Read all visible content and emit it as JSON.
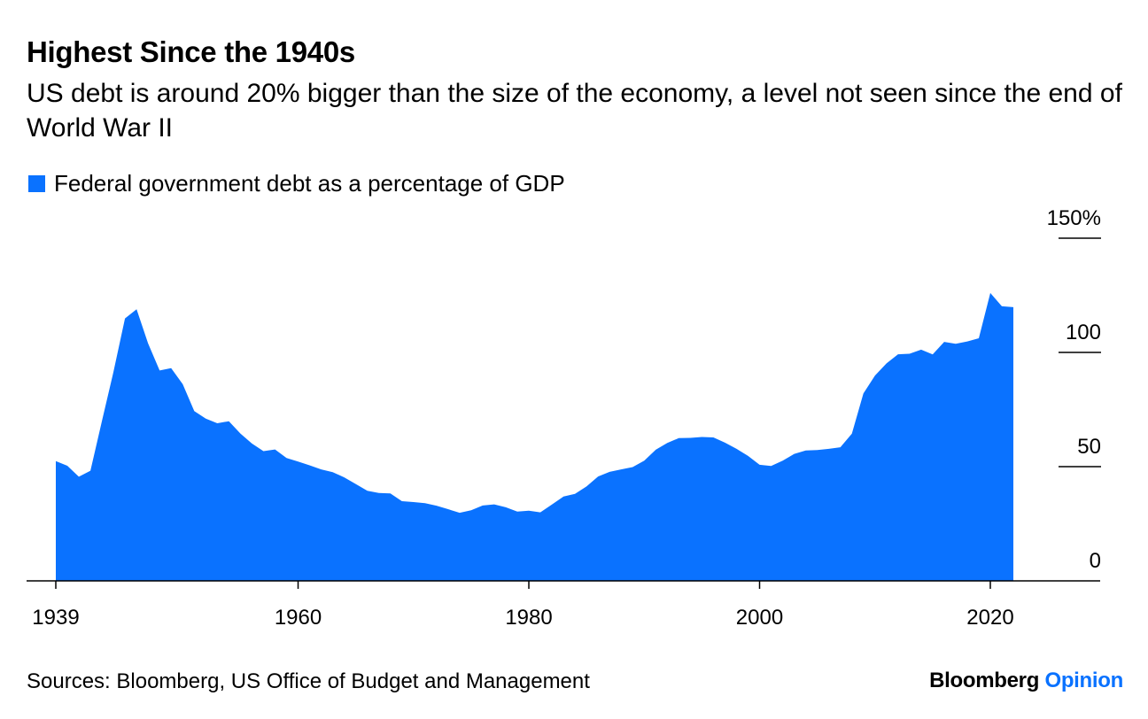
{
  "header": {
    "title": "Highest Since the 1940s",
    "subtitle": "US debt is around 20% bigger than the size of the economy, a level not seen since the end of World War II"
  },
  "legend": {
    "label": "Federal government debt as a percentage of GDP"
  },
  "footer": {
    "source": "Sources: Bloomberg, US Office of Budget and Management",
    "brand_main": "Bloomberg",
    "brand_accent": "Opinion"
  },
  "colors": {
    "series": "#0a72ff",
    "axis": "#000000"
  },
  "chart_data": {
    "type": "area",
    "title": "Highest Since the 1940s",
    "subtitle": "US debt is around 20% bigger than the size of the economy, a level not seen since the end of World War II",
    "xlabel": "",
    "ylabel": "",
    "xlim": [
      1939,
      2027
    ],
    "ylim": [
      0,
      150
    ],
    "grid": false,
    "legend_position": "top-left",
    "y_axis_side": "right",
    "x_ticks": [
      1939,
      1960,
      1980,
      2000,
      2020
    ],
    "x_tick_labels": [
      "1939",
      "1960",
      "1980",
      "2000",
      "2020"
    ],
    "y_ticks": [
      0,
      50,
      100,
      150
    ],
    "y_tick_labels": [
      "0",
      "50",
      "100",
      "150%"
    ],
    "series": [
      {
        "name": "Federal government debt as a percentage of GDP",
        "x": [
          1939,
          1940,
          1941,
          1942,
          1943,
          1944,
          1945,
          1946,
          1947,
          1948,
          1949,
          1950,
          1951,
          1952,
          1953,
          1954,
          1955,
          1956,
          1957,
          1958,
          1959,
          1960,
          1961,
          1962,
          1963,
          1964,
          1965,
          1966,
          1967,
          1968,
          1969,
          1970,
          1971,
          1972,
          1973,
          1974,
          1975,
          1976,
          1977,
          1978,
          1979,
          1980,
          1981,
          1982,
          1983,
          1984,
          1985,
          1986,
          1987,
          1988,
          1989,
          1990,
          1991,
          1992,
          1993,
          1994,
          1995,
          1996,
          1997,
          1998,
          1999,
          2000,
          2001,
          2002,
          2003,
          2004,
          2005,
          2006,
          2007,
          2008,
          2009,
          2010,
          2011,
          2012,
          2013,
          2014,
          2015,
          2016,
          2017,
          2018,
          2019,
          2020,
          2021,
          2022
        ],
        "values": [
          52.4,
          50.4,
          45.6,
          48.2,
          70.0,
          91.5,
          114.9,
          118.9,
          103.9,
          92.1,
          93.1,
          86.1,
          74.3,
          71.0,
          69.0,
          69.9,
          64.5,
          60.1,
          56.8,
          57.5,
          53.8,
          52.2,
          50.6,
          48.8,
          47.6,
          45.3,
          42.4,
          39.4,
          38.5,
          38.3,
          34.9,
          34.5,
          34.0,
          32.9,
          31.4,
          29.8,
          30.9,
          33.0,
          33.5,
          32.2,
          30.3,
          30.7,
          30.0,
          33.4,
          36.9,
          38.1,
          41.3,
          45.7,
          47.7,
          48.8,
          49.8,
          52.6,
          57.4,
          60.4,
          62.5,
          62.6,
          63.0,
          62.8,
          60.5,
          57.8,
          54.7,
          50.8,
          50.3,
          52.6,
          55.6,
          57.1,
          57.3,
          57.8,
          58.5,
          64.4,
          82.0,
          89.9,
          95.2,
          99.2,
          99.4,
          101.2,
          99.1,
          104.6,
          103.8,
          104.8,
          106.2,
          126.0,
          120.2,
          119.8
        ]
      }
    ]
  }
}
